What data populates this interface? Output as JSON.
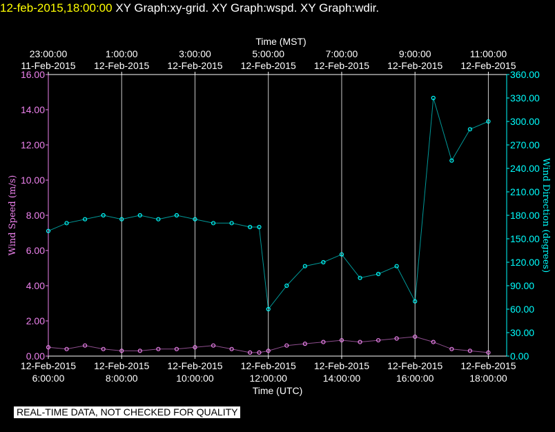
{
  "header": {
    "timestamp": "12-feb-2015,18:00:00",
    "graphs": "XY Graph:xy-grid.  XY Graph:wspd.  XY Graph:wdir."
  },
  "notice": "REAL-TIME DATA, NOT CHECKED FOR QUALITY",
  "colors": {
    "wspd": "#ee82ee",
    "wdir": "#00ffff",
    "grid": "#ffffff",
    "axis_top": "#ffffff"
  },
  "chart_data": {
    "type": "scatter",
    "top_axis": {
      "label": "Time (MST)",
      "ticks": [
        {
          "time": "23:00:00",
          "date": "11-Feb-2015"
        },
        {
          "time": "1:00:00",
          "date": "12-Feb-2015"
        },
        {
          "time": "3:00:00",
          "date": "12-Feb-2015"
        },
        {
          "time": "5:00:00",
          "date": "12-Feb-2015"
        },
        {
          "time": "7:00:00",
          "date": "12-Feb-2015"
        },
        {
          "time": "9:00:00",
          "date": "12-Feb-2015"
        },
        {
          "time": "11:00:00",
          "date": "12-Feb-2015"
        }
      ]
    },
    "bottom_axis": {
      "label": "Time (UTC)",
      "xlim": [
        6,
        18.5
      ],
      "ticks": [
        {
          "value": 6,
          "time": "6:00:00",
          "date": "12-Feb-2015"
        },
        {
          "value": 8,
          "time": "8:00:00",
          "date": "12-Feb-2015"
        },
        {
          "value": 10,
          "time": "10:00:00",
          "date": "12-Feb-2015"
        },
        {
          "value": 12,
          "time": "12:00:00",
          "date": "12-Feb-2015"
        },
        {
          "value": 14,
          "time": "14:00:00",
          "date": "12-Feb-2015"
        },
        {
          "value": 16,
          "time": "16:00:00",
          "date": "12-Feb-2015"
        },
        {
          "value": 18,
          "time": "18:00:00",
          "date": "12-Feb-2015"
        }
      ]
    },
    "left_axis": {
      "label": "Wind Speed (m/s)",
      "ylim": [
        0,
        16
      ],
      "ticks": [
        "0.00",
        "2.00",
        "4.00",
        "6.00",
        "8.00",
        "10.00",
        "12.00",
        "14.00",
        "16.00"
      ]
    },
    "right_axis": {
      "label": "Wind Direction (degrees)",
      "ylim": [
        0,
        360
      ],
      "ticks": [
        "0.00",
        "30.00",
        "60.00",
        "90.00",
        "120.00",
        "150.00",
        "180.00",
        "210.00",
        "240.00",
        "270.00",
        "300.00",
        "330.00",
        "360.00"
      ]
    },
    "grid": "vertical",
    "series": [
      {
        "key": "wspd",
        "axis": "left",
        "x": [
          6.0,
          6.5,
          7.0,
          7.5,
          8.0,
          8.5,
          9.0,
          9.5,
          10.0,
          10.5,
          11.0,
          11.5,
          11.75,
          12.0,
          12.5,
          13.0,
          13.5,
          14.0,
          14.5,
          15.0,
          15.5,
          16.0,
          16.5,
          17.0,
          17.5,
          18.0
        ],
        "y": [
          0.5,
          0.4,
          0.6,
          0.4,
          0.3,
          0.3,
          0.4,
          0.4,
          0.5,
          0.6,
          0.4,
          0.2,
          0.2,
          0.3,
          0.6,
          0.7,
          0.8,
          0.9,
          0.8,
          0.9,
          1.0,
          1.1,
          0.8,
          0.4,
          0.3,
          0.2
        ]
      },
      {
        "key": "wdir",
        "axis": "right",
        "x": [
          6.0,
          6.5,
          7.0,
          7.5,
          8.0,
          8.5,
          9.0,
          9.5,
          10.0,
          10.5,
          11.0,
          11.5,
          11.75,
          12.0,
          12.5,
          13.0,
          13.5,
          14.0,
          14.5,
          15.0,
          15.5,
          16.0,
          16.5,
          17.0,
          17.5,
          18.0
        ],
        "y": [
          160,
          170,
          175,
          180,
          175,
          180,
          175,
          180,
          175,
          170,
          170,
          165,
          165,
          60,
          90,
          115,
          120,
          130,
          100,
          105,
          115,
          70,
          330,
          250,
          290,
          300
        ]
      }
    ]
  }
}
